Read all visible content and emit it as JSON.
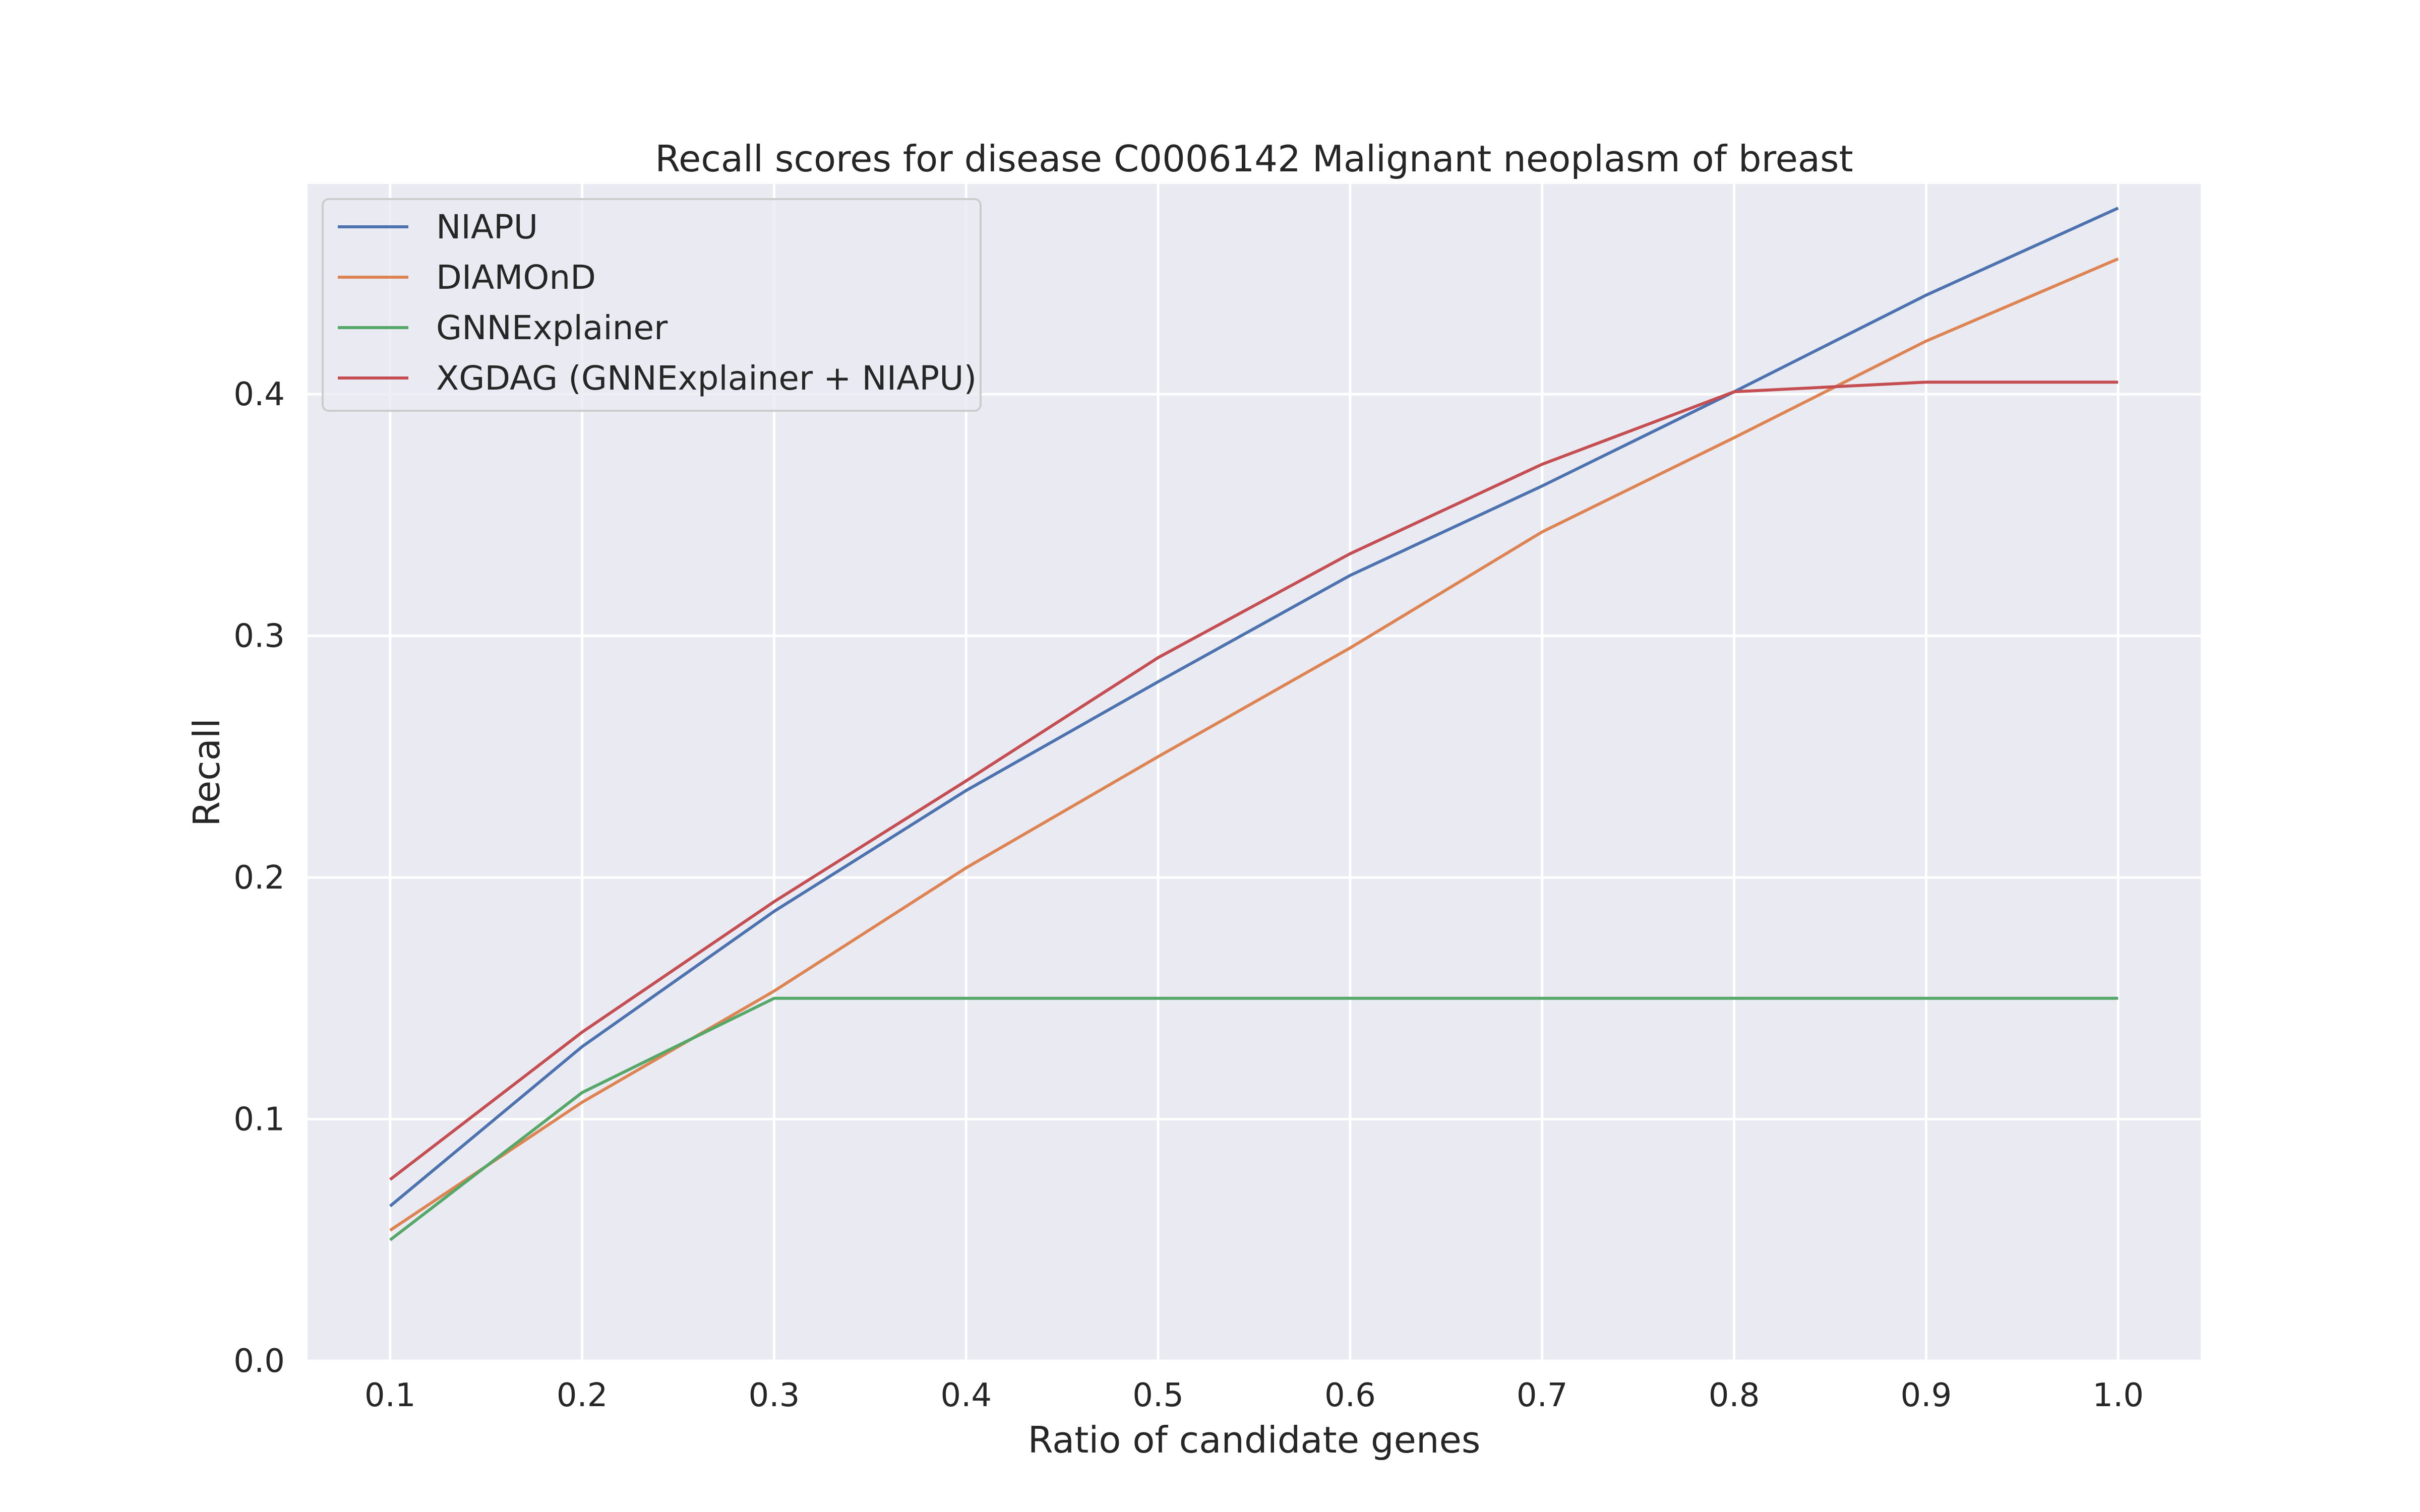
{
  "chart_data": {
    "type": "line",
    "title": "Recall scores for disease C0006142 Malignant neoplasm of breast",
    "xlabel": "Ratio of candidate genes",
    "ylabel": "Recall",
    "x": [
      0.1,
      0.2,
      0.3,
      0.4,
      0.5,
      0.6,
      0.7,
      0.8,
      0.9,
      1.0
    ],
    "x_tick_labels": [
      "0.1",
      "0.2",
      "0.3",
      "0.4",
      "0.5",
      "0.6",
      "0.7",
      "0.8",
      "0.9",
      "1.0"
    ],
    "y_ticks": [
      0.0,
      0.1,
      0.2,
      0.3,
      0.4
    ],
    "y_tick_labels": [
      "0.0",
      "0.1",
      "0.2",
      "0.3",
      "0.4"
    ],
    "xlim": [
      0.057,
      1.043
    ],
    "ylim": [
      0.0,
      0.487
    ],
    "grid": true,
    "legend_position": "top-left",
    "series": [
      {
        "name": "NIAPU",
        "color": "#4c72b0",
        "values": [
          0.064,
          0.13,
          0.186,
          0.236,
          0.281,
          0.325,
          0.362,
          0.401,
          0.441,
          0.477
        ]
      },
      {
        "name": "DIAMOnD",
        "color": "#dd8452",
        "values": [
          0.054,
          0.107,
          0.153,
          0.204,
          0.25,
          0.295,
          0.343,
          0.382,
          0.422,
          0.456
        ]
      },
      {
        "name": "GNNExplainer",
        "color": "#55a868",
        "values": [
          0.05,
          0.111,
          0.15,
          0.15,
          0.15,
          0.15,
          0.15,
          0.15,
          0.15,
          0.15
        ]
      },
      {
        "name": "XGDAG (GNNExplainer + NIAPU)",
        "color": "#c44e52",
        "values": [
          0.075,
          0.136,
          0.19,
          0.24,
          0.291,
          0.334,
          0.371,
          0.401,
          0.405,
          0.405
        ]
      }
    ]
  }
}
